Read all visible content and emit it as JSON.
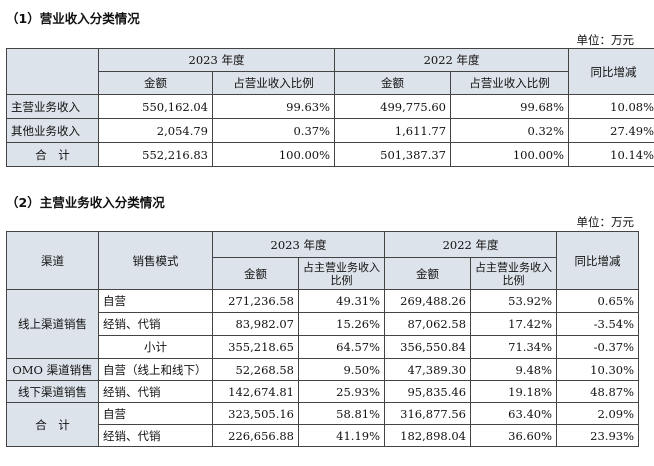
{
  "section1": {
    "heading": "（1）营业收入分类情况",
    "unit": "单位：万元",
    "header": {
      "year2023": "2023 年度",
      "year2022": "2022 年度",
      "amount": "金额",
      "ratio": "占营业收入比例",
      "yoy": "同比增减"
    },
    "rows": [
      {
        "label": "主营业务收入",
        "a23": "550,162.04",
        "r23": "99.63%",
        "a22": "499,775.60",
        "r22": "99.68%",
        "yoy": "10.08%"
      },
      {
        "label": "其他业务收入",
        "a23": "2,054.79",
        "r23": "0.37%",
        "a22": "1,611.77",
        "r22": "0.32%",
        "yoy": "27.49%"
      },
      {
        "label": "合　计",
        "a23": "552,216.83",
        "r23": "100.00%",
        "a22": "501,387.37",
        "r22": "100.00%",
        "yoy": "10.14%"
      }
    ]
  },
  "section2": {
    "heading": "（2）主营业务收入分类情况",
    "unit": "单位：万元",
    "header": {
      "channel": "渠道",
      "mode": "销售模式",
      "year2023": "2023 年度",
      "year2022": "2022 年度",
      "amount": "金额",
      "ratio": "占主营业务收入比例",
      "yoy": "同比增减"
    },
    "groups": {
      "online": {
        "label": "线上渠道销售",
        "rows": [
          {
            "mode": "自营",
            "a23": "271,236.58",
            "r23": "49.31%",
            "a22": "269,488.26",
            "r22": "53.92%",
            "yoy": "0.65%"
          },
          {
            "mode": "经销、代销",
            "a23": "83,982.07",
            "r23": "15.26%",
            "a22": "87,062.58",
            "r22": "17.42%",
            "yoy": "-3.54%"
          },
          {
            "mode": "小计",
            "a23": "355,218.65",
            "r23": "64.57%",
            "a22": "356,550.84",
            "r22": "71.34%",
            "yoy": "-0.37%"
          }
        ]
      },
      "omo": {
        "label": "OMO 渠道销售",
        "mode": "自营（线上和线下）",
        "a23": "52,268.58",
        "r23": "9.50%",
        "a22": "47,389.30",
        "r22": "9.48%",
        "yoy": "10.30%"
      },
      "offline": {
        "label": "线下渠道销售",
        "mode": "经销、代销",
        "a23": "142,674.81",
        "r23": "25.93%",
        "a22": "95,835.46",
        "r22": "19.18%",
        "yoy": "48.87%"
      },
      "total": {
        "label": "合　计",
        "rows": [
          {
            "mode": "自营",
            "a23": "323,505.16",
            "r23": "58.81%",
            "a22": "316,877.56",
            "r22": "63.40%",
            "yoy": "2.09%"
          },
          {
            "mode": "经销、代销",
            "a23": "226,656.88",
            "r23": "41.19%",
            "a22": "182,898.04",
            "r22": "36.60%",
            "yoy": "23.93%"
          }
        ]
      }
    }
  }
}
